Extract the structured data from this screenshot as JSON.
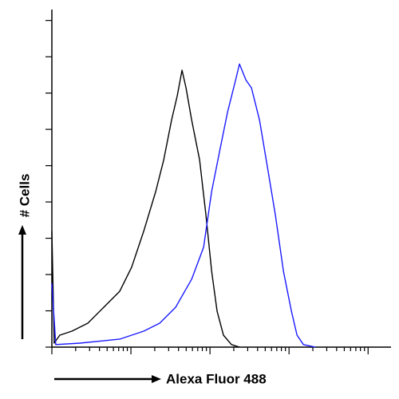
{
  "chart_data": {
    "type": "line",
    "xlabel": "Alexa Fluor 488",
    "ylabel": "# Cells",
    "xscale": "log",
    "xlim": [
      1,
      19500
    ],
    "ylim": [
      0,
      9.3
    ],
    "xticks": [
      1,
      2,
      3,
      4,
      5,
      6,
      7,
      8,
      9,
      10,
      20,
      30,
      40,
      50,
      60,
      70,
      80,
      90,
      100,
      200,
      300,
      400,
      500,
      600,
      700,
      800,
      900,
      1000,
      2000,
      3000,
      4000,
      5000,
      6000,
      7000,
      8000,
      9000,
      10000
    ],
    "yticks": [
      0,
      1,
      2,
      3,
      4,
      5,
      6,
      7,
      8,
      9
    ],
    "series": [
      {
        "color": "#000000",
        "x": [
          1,
          1.07,
          1.26,
          1.79,
          2.85,
          4.54,
          7.22,
          10.2,
          14.5,
          20.6,
          26.0,
          32.7,
          38.5,
          44.3,
          49.8,
          58.6,
          73.9,
          89.0,
          105,
          123,
          148,
          187,
          236
        ],
        "values": [
          3.19,
          0.11,
          0.33,
          0.44,
          0.66,
          1.1,
          1.54,
          2.2,
          3.19,
          4.29,
          5.16,
          6.26,
          6.92,
          7.63,
          7.14,
          6.26,
          5.16,
          3.63,
          2.09,
          0.99,
          0.33,
          0.07,
          0
        ]
      },
      {
        "color": "#1a1aff",
        "x": [
          1,
          1.12,
          2.26,
          7.22,
          14.5,
          23.1,
          36.8,
          58.6,
          83.0,
          105,
          132,
          167,
          211,
          236,
          285,
          335,
          423,
          534,
          673,
          850,
          1072,
          1262,
          1520,
          2154
        ],
        "values": [
          1.76,
          0.07,
          0.11,
          0.22,
          0.44,
          0.66,
          1.1,
          1.87,
          2.75,
          4.29,
          5.38,
          6.48,
          7.36,
          7.8,
          7.36,
          7.14,
          6.26,
          4.95,
          3.63,
          2.09,
          0.99,
          0.33,
          0.07,
          0
        ]
      }
    ]
  }
}
